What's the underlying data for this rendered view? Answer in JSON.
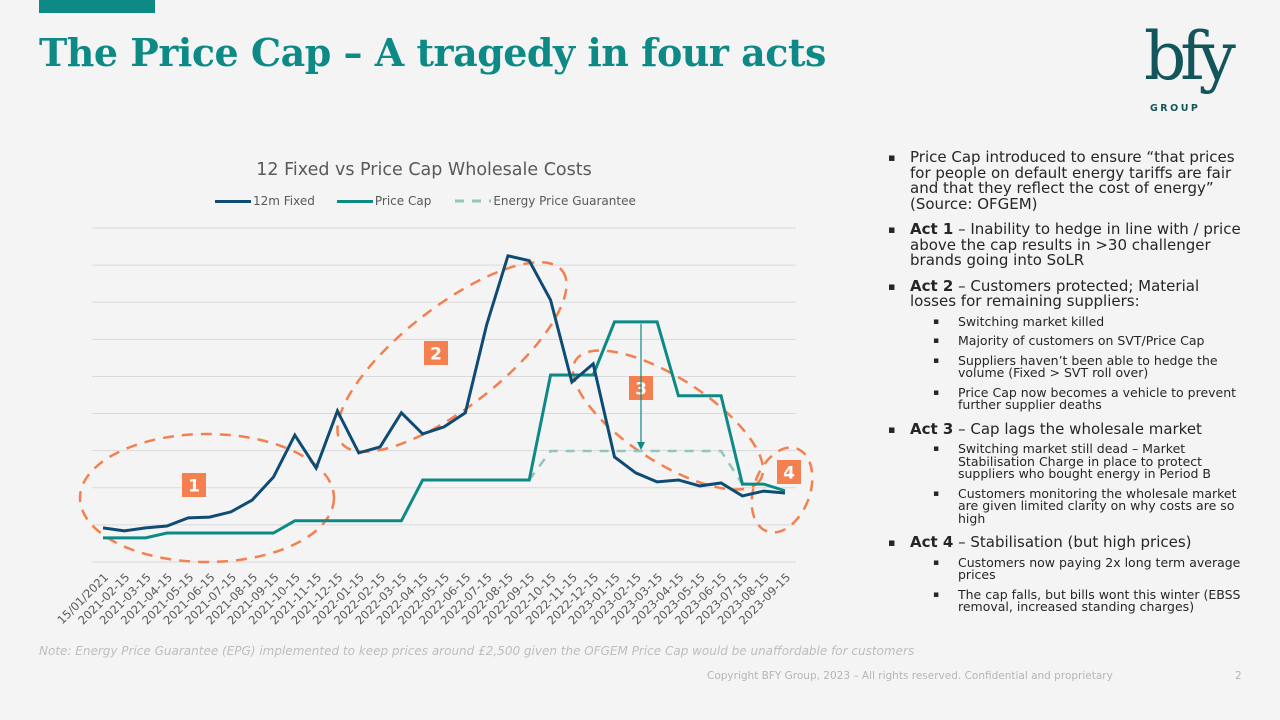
{
  "slide": {
    "title": "The Price Cap – A tragedy in four acts",
    "logo": {
      "letters": "bfy",
      "subtitle": "GROUP"
    },
    "note": "Note: Energy Price Guarantee (EPG) implemented to keep prices around £2,500 given the OFGEM Price Cap would be unaffordable for customers",
    "footer": "Copyright BFY Group, 2023 – All rights reserved. Confidential and proprietary",
    "page_number": "2",
    "colors": {
      "accent": "#0e8a86",
      "fixed": "#0f4c75",
      "price_cap": "#0e8a86",
      "epg": "#8fc6bf",
      "annotation": "#f47f4f"
    }
  },
  "bullets": [
    {
      "label": "",
      "text": "Price Cap introduced to ensure “that prices for people on default energy tariffs are fair and that they reflect the cost of energy” (Source:  OFGEM)",
      "sub": []
    },
    {
      "label": "Act 1",
      "text": " – Inability to hedge in line with / price above the cap results in >30 challenger brands going into SoLR",
      "sub": []
    },
    {
      "label": "Act 2",
      "text": " – Customers protected; Material losses for remaining suppliers:",
      "sub": [
        "Switching market killed",
        "Majority of customers on SVT/Price Cap",
        "Suppliers  haven’t been able to hedge the volume  (Fixed > SVT roll over)",
        "Price Cap now becomes  a vehicle to prevent further supplier  deaths"
      ]
    },
    {
      "label": "Act 3",
      "text": " – Cap lags the wholesale market",
      "sub": [
        "Switching market still dead – Market Stabilisation  Charge in place to protect suppliers  who bought energy in Period B",
        "Customers  monitoring  the wholesale market are given limited  clarity on why costs are so high"
      ]
    },
    {
      "label": "Act 4",
      "text": " – Stabilisation (but high prices)",
      "sub": [
        "Customers  now paying 2x long term average prices",
        "The cap falls, but bills  wont this winter (EBSS  removal, increased standing charges)"
      ]
    }
  ],
  "chart_data": {
    "type": "line",
    "title": "12 Fixed vs Price Cap Wholesale Costs",
    "xlabel": "",
    "ylabel": "",
    "y_axis_labels_shown": false,
    "y_units": "relative (gridline index, 0 = bottom gridline)",
    "ylim": [
      0,
      9
    ],
    "grid": true,
    "legend_position": "top",
    "categories": [
      "15/01/2021",
      "2021-02-15",
      "2021-03-15",
      "2021-04-15",
      "2021-05-15",
      "2021-06-15",
      "2021-07-15",
      "2021-08-15",
      "2021-09-15",
      "2021-10-15",
      "2021-11-15",
      "2021-12-15",
      "2022-01-15",
      "2022-02-15",
      "2022-03-15",
      "2022-04-15",
      "2022-05-15",
      "2022-06-15",
      "2022-07-15",
      "2022-08-15",
      "2022-09-15",
      "2022-10-15",
      "2022-11-15",
      "2022-12-15",
      "2023-01-15",
      "2023-02-15",
      "2023-03-15",
      "2023-04-15",
      "2023-05-15",
      "2023-06-15",
      "2023-07-15",
      "2023-08-15",
      "2023-09-15"
    ],
    "series": [
      {
        "name": "12m Fixed",
        "style": "solid",
        "color": "#0f4c75",
        "values": [
          0.92,
          0.84,
          0.92,
          0.97,
          1.19,
          1.21,
          1.35,
          1.67,
          2.29,
          3.42,
          2.53,
          4.07,
          2.94,
          3.1,
          4.02,
          3.45,
          3.64,
          4.02,
          6.39,
          8.25,
          8.12,
          7.06,
          4.85,
          5.34,
          2.83,
          2.4,
          2.16,
          2.21,
          2.05,
          2.13,
          1.78,
          1.91,
          1.86
        ]
      },
      {
        "name": "Price Cap",
        "style": "solid",
        "color": "#0e8a86",
        "values": [
          0.65,
          0.65,
          0.65,
          0.78,
          0.78,
          0.78,
          0.78,
          0.78,
          0.78,
          1.11,
          1.11,
          1.11,
          1.11,
          1.11,
          1.11,
          2.21,
          2.21,
          2.21,
          2.21,
          2.21,
          2.21,
          5.04,
          5.04,
          5.04,
          6.47,
          6.47,
          6.47,
          4.48,
          4.48,
          4.48,
          2.1,
          2.1,
          1.92
        ]
      },
      {
        "name": "Energy Price Guarantee",
        "style": "dashed",
        "color": "#8fc6bf",
        "values": [
          null,
          null,
          null,
          null,
          null,
          null,
          null,
          null,
          null,
          null,
          null,
          null,
          null,
          null,
          null,
          null,
          null,
          null,
          null,
          null,
          2.21,
          2.99,
          2.99,
          2.99,
          2.99,
          2.99,
          2.99,
          2.99,
          2.99,
          2.99,
          2.1,
          null,
          null
        ]
      }
    ],
    "annotations": [
      {
        "label": "1",
        "shape": "dashed-ellipse",
        "covers": "2021-01 to 2021-10"
      },
      {
        "label": "2",
        "shape": "dashed-ellipse",
        "covers": "2021-12 to 2022-09"
      },
      {
        "label": "3",
        "shape": "dashed-ellipse + arrow",
        "covers": "2022-11 to 2023-07",
        "arrow": "Price Cap down to EPG level"
      },
      {
        "label": "4",
        "shape": "dashed-ellipse",
        "covers": "2023-07 to 2023-09"
      }
    ]
  }
}
